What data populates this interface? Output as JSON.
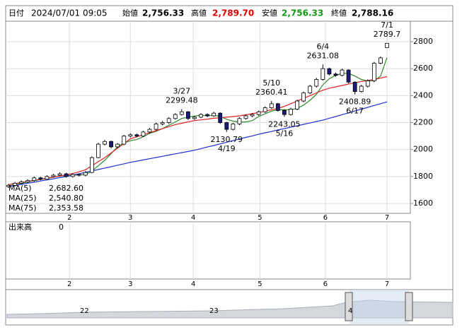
{
  "header": {
    "date_label": "日付",
    "datetime": "2024/07/01 09:05",
    "open_label": "始値",
    "open": "2,756.33",
    "high_label": "高値",
    "high": "2,789.70",
    "low_label": "安値",
    "low": "2,756.33",
    "close_label": "終値",
    "close": "2,788.16"
  },
  "chart_data": {
    "type": "candlestick",
    "categories": [
      null,
      null,
      null,
      null,
      null,
      null,
      null,
      null,
      null,
      null,
      null,
      null,
      null,
      null,
      null,
      null,
      null,
      null,
      null,
      null,
      null,
      null,
      null,
      null,
      null,
      null,
      null,
      null,
      null,
      null,
      null,
      null,
      null,
      null,
      null,
      null,
      null,
      null,
      null,
      null,
      null,
      null,
      null,
      null,
      null,
      null,
      null,
      null,
      null,
      null,
      null,
      null,
      null,
      null,
      null,
      null,
      null,
      null,
      null,
      null
    ],
    "open": [
      1725,
      1735,
      1750,
      1760,
      1770,
      1790,
      1780,
      1800,
      1810,
      1820,
      1800,
      1815,
      1810,
      1830,
      1940,
      2040,
      2060,
      2020,
      2040,
      2100,
      2110,
      2100,
      2130,
      2150,
      2190,
      2200,
      2230,
      2260,
      2280,
      2230,
      2240,
      2260,
      2250,
      2270,
      2200,
      2150,
      2190,
      2230,
      2250,
      2260,
      2280,
      2310,
      2340,
      2290,
      2260,
      2300,
      2360,
      2420,
      2470,
      2520,
      2600,
      2560,
      2550,
      2590,
      2500,
      2430,
      2470,
      2510,
      2640,
      2756.33
    ],
    "high": [
      1745,
      1760,
      1772,
      1780,
      1800,
      1798,
      1810,
      1820,
      1832,
      1828,
      1824,
      1822,
      1840,
      1950,
      2050,
      2072,
      2066,
      2048,
      2108,
      2120,
      2118,
      2140,
      2160,
      2200,
      2212,
      2240,
      2270,
      2299.48,
      2286,
      2250,
      2270,
      2268,
      2280,
      2276,
      2206,
      2198,
      2240,
      2260,
      2270,
      2290,
      2320,
      2360.41,
      2346,
      2298,
      2310,
      2370,
      2430,
      2480,
      2532,
      2631.08,
      2608,
      2570,
      2600,
      2596,
      2506,
      2480,
      2520,
      2650,
      2690,
      2789.7
    ],
    "low": [
      1715,
      1728,
      1742,
      1752,
      1762,
      1772,
      1772,
      1792,
      1802,
      1792,
      1792,
      1800,
      1802,
      1825,
      1935,
      2030,
      2010,
      2012,
      2032,
      2090,
      2090,
      2092,
      2120,
      2140,
      2180,
      2190,
      2222,
      2252,
      2220,
      2220,
      2232,
      2240,
      2242,
      2190,
      2130.79,
      2142,
      2182,
      2222,
      2240,
      2250,
      2272,
      2302,
      2282,
      2243.05,
      2252,
      2292,
      2350,
      2410,
      2460,
      2512,
      2550,
      2540,
      2542,
      2490,
      2408.89,
      2422,
      2460,
      2500,
      2632,
      2756.33
    ],
    "close": [
      1735,
      1750,
      1760,
      1770,
      1790,
      1780,
      1800,
      1810,
      1820,
      1800,
      1815,
      1810,
      1830,
      1940,
      2040,
      2060,
      2020,
      2040,
      2100,
      2110,
      2100,
      2130,
      2150,
      2190,
      2200,
      2230,
      2260,
      2280,
      2230,
      2240,
      2260,
      2250,
      2270,
      2200,
      2150,
      2190,
      2230,
      2250,
      2260,
      2280,
      2310,
      2340,
      2290,
      2260,
      2300,
      2360,
      2420,
      2470,
      2520,
      2600,
      2560,
      2550,
      2590,
      2500,
      2430,
      2470,
      2510,
      2640,
      2680,
      2788.16
    ],
    "up_color": "#ffffff",
    "down_color": "#1a1a7a",
    "series": [
      {
        "name": "MA(5)",
        "color": "#2e8b2e",
        "legend_value": "2,682.60",
        "values": [
          1730,
          1740,
          1750,
          1760,
          1770,
          1778,
          1785,
          1795,
          1805,
          1806,
          1810,
          1812,
          1815,
          1840,
          1880,
          1920,
          1970,
          2020,
          2050,
          2065,
          2075,
          2095,
          2120,
          2135,
          2155,
          2180,
          2205,
          2230,
          2240,
          2248,
          2255,
          2250,
          2255,
          2245,
          2225,
          2210,
          2205,
          2205,
          2215,
          2245,
          2265,
          2285,
          2295,
          2295,
          2295,
          2305,
          2330,
          2365,
          2410,
          2480,
          2525,
          2550,
          2565,
          2565,
          2545,
          2520,
          2510,
          2510,
          2545,
          2682.6
        ]
      },
      {
        "name": "MA(25)",
        "color": "#e02020",
        "legend_value": "2,540.80",
        "values": [
          1740,
          1748,
          1756,
          1764,
          1772,
          1780,
          1788,
          1796,
          1804,
          1812,
          1822,
          1835,
          1850,
          1880,
          1910,
          1940,
          1975,
          2010,
          2045,
          2080,
          2095,
          2110,
          2125,
          2140,
          2155,
          2170,
          2185,
          2195,
          2205,
          2215,
          2220,
          2226,
          2232,
          2236,
          2240,
          2245,
          2250,
          2258,
          2266,
          2275,
          2285,
          2295,
          2305,
          2320,
          2340,
          2360,
          2380,
          2400,
          2420,
          2440,
          2455,
          2465,
          2475,
          2485,
          2495,
          2505,
          2512,
          2520,
          2530,
          2540.8
        ]
      },
      {
        "name": "MA(75)",
        "color": "#2030d0",
        "legend_value": "2,353.58",
        "values": [
          1725,
          1733,
          1742,
          1750,
          1758,
          1767,
          1775,
          1783,
          1792,
          1800,
          1810,
          1821,
          1831,
          1842,
          1852,
          1863,
          1873,
          1884,
          1894,
          1905,
          1914,
          1923,
          1932,
          1941,
          1950,
          1959,
          1968,
          1977,
          1986,
          1995,
          2007,
          2019,
          2030,
          2042,
          2054,
          2066,
          2078,
          2090,
          2101,
          2113,
          2124,
          2134,
          2145,
          2155,
          2166,
          2176,
          2187,
          2197,
          2208,
          2218,
          2232,
          2245,
          2259,
          2272,
          2286,
          2300,
          2313,
          2327,
          2340,
          2353.58
        ]
      }
    ],
    "annotations": [
      {
        "date": "3/27",
        "price": 2299.48
      },
      {
        "date": "4/19",
        "price": 2130.79
      },
      {
        "date": "5/10",
        "price": 2360.41
      },
      {
        "date": "5/16",
        "price": 2243.05
      },
      {
        "date": "6/4",
        "price": 2631.08
      },
      {
        "date": "6/17",
        "price": 2408.89
      },
      {
        "date": "7/1",
        "price": 2789.7
      }
    ],
    "ylim": [
      1527,
      2952
    ],
    "yticks": [
      1600,
      1800,
      2000,
      2200,
      2400,
      2600,
      2800
    ],
    "xticks": [
      {
        "value": 9.5,
        "label": "2"
      },
      {
        "value": 19,
        "label": "3"
      },
      {
        "value": 28.8,
        "label": "4"
      },
      {
        "value": 39.2,
        "label": "5"
      },
      {
        "value": 49.4,
        "label": "6"
      },
      {
        "value": 59,
        "label": "7"
      }
    ],
    "grid": true,
    "volume": {
      "label": "出来高",
      "value": 0
    }
  },
  "navigator": {
    "labels": [
      "22",
      "23",
      "4"
    ]
  }
}
